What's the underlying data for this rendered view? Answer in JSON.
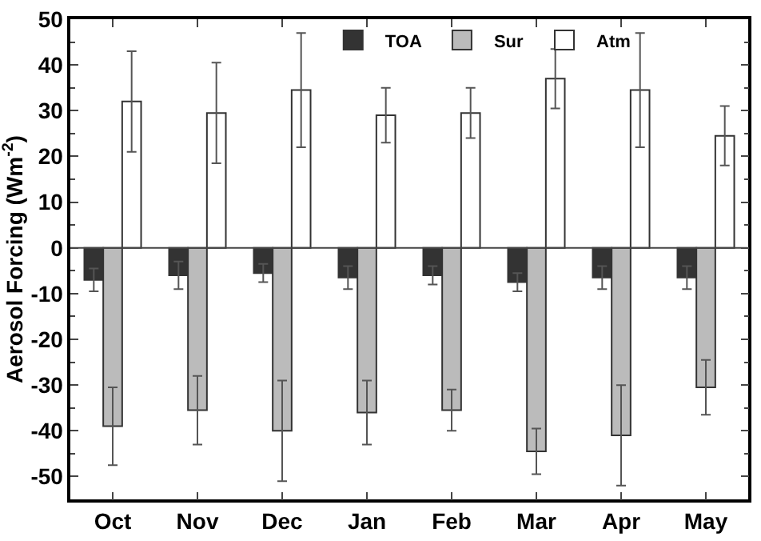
{
  "chart_data": {
    "type": "bar",
    "ylabel": "Aerosol Forcing (Wm$^{-2}$)",
    "categories": [
      "Oct",
      "Nov",
      "Dec",
      "Jan",
      "Feb",
      "Mar",
      "Apr",
      "May"
    ],
    "series": [
      {
        "name": "TOA",
        "color": "#333333",
        "values": [
          -7,
          -6,
          -5.5,
          -6.5,
          -6,
          -7.5,
          -6.5,
          -6.5
        ],
        "errors": [
          2.5,
          3,
          2,
          2.5,
          2,
          2,
          2.5,
          2.5
        ]
      },
      {
        "name": "Sur",
        "color": "#bbbbbb",
        "values": [
          -39,
          -35.5,
          -40,
          -36,
          -35.5,
          -44.5,
          -41,
          -30.5
        ],
        "errors": [
          8.5,
          7.5,
          11,
          7,
          4.5,
          5,
          11,
          6
        ]
      },
      {
        "name": "Atm",
        "color": "#ffffff",
        "values": [
          32,
          29.5,
          34.5,
          29,
          29.5,
          37,
          34.5,
          24.5
        ],
        "errors": [
          11,
          11,
          12.5,
          6,
          5.5,
          6.5,
          12.5,
          6.5
        ]
      }
    ],
    "ylim": [
      -55,
      50
    ],
    "yticks": [
      -50,
      -40,
      -30,
      -20,
      -10,
      0,
      10,
      20,
      30,
      40,
      50
    ],
    "grid": false,
    "legend": "top right",
    "ref_lines": [
      {
        "axis": "y",
        "value": 0
      }
    ]
  }
}
